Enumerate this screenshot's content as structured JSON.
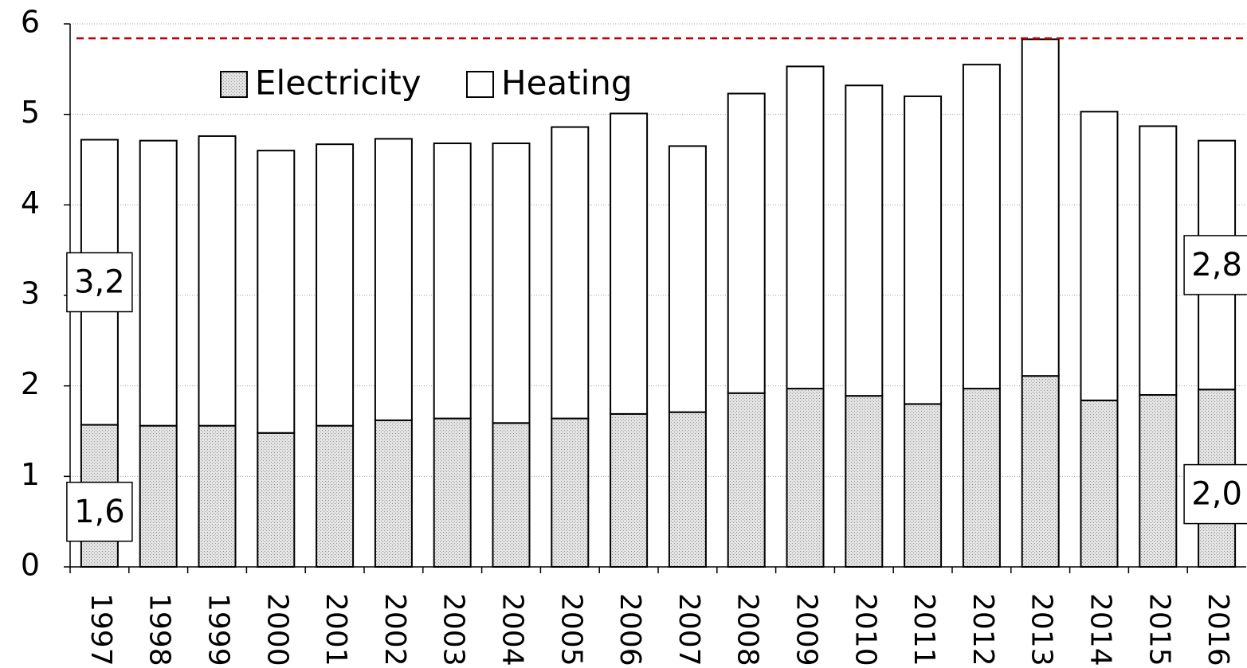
{
  "chart_data": {
    "type": "stacked_bar",
    "categories": [
      "1997",
      "1998",
      "1999",
      "2000",
      "2001",
      "2002",
      "2003",
      "2004",
      "2005",
      "2006",
      "2007",
      "2008",
      "2009",
      "2010",
      "2011",
      "2012",
      "2013",
      "2014",
      "2015",
      "2016"
    ],
    "series": [
      {
        "name": "Electricity",
        "color": "#d4d4d4",
        "values": [
          1.57,
          1.56,
          1.56,
          1.48,
          1.56,
          1.62,
          1.64,
          1.59,
          1.64,
          1.69,
          1.71,
          1.92,
          1.97,
          1.89,
          1.8,
          1.97,
          2.11,
          1.84,
          1.9,
          1.96
        ],
        "value_labels": [
          "1,6",
          null,
          null,
          null,
          null,
          null,
          null,
          null,
          null,
          null,
          null,
          null,
          null,
          null,
          null,
          null,
          null,
          null,
          null,
          "2,0"
        ]
      },
      {
        "name": "Heating",
        "color": "#ffffff",
        "values": [
          3.15,
          3.15,
          3.2,
          3.12,
          3.11,
          3.11,
          3.04,
          3.09,
          3.22,
          3.32,
          2.94,
          3.31,
          3.56,
          3.43,
          3.4,
          3.58,
          3.72,
          3.19,
          2.97,
          2.75
        ],
        "value_labels": [
          "3,2",
          null,
          null,
          null,
          null,
          null,
          null,
          null,
          null,
          null,
          null,
          null,
          null,
          null,
          null,
          null,
          null,
          null,
          null,
          "2,8"
        ]
      }
    ],
    "reference_line": {
      "value": 5.84,
      "color": "#c00000"
    },
    "ylim": [
      0,
      6
    ],
    "yticks": [
      0,
      1,
      2,
      3,
      4,
      5,
      6
    ],
    "grid": true,
    "legend": "top"
  }
}
